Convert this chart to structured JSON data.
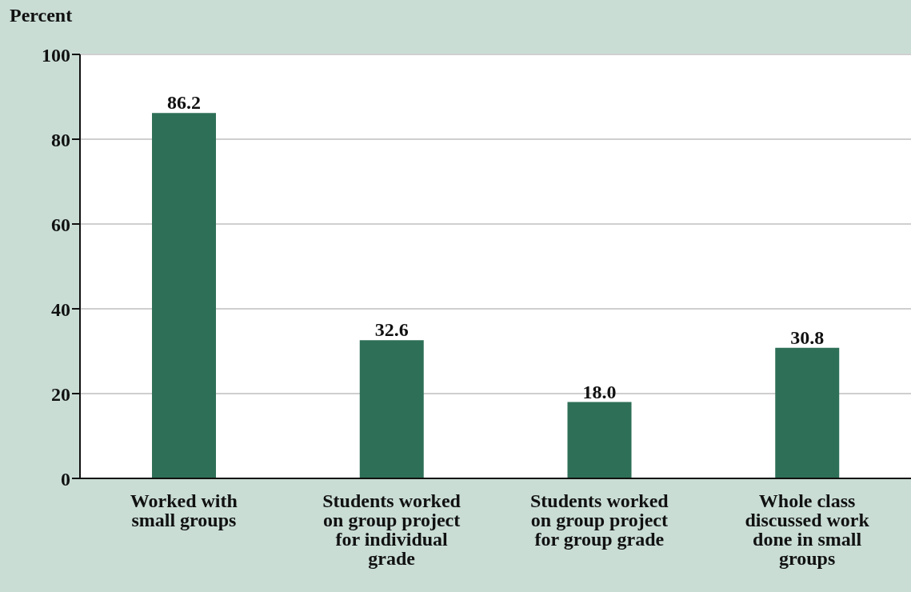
{
  "chart_data": {
    "type": "bar",
    "ylabel": "Percent",
    "categories": [
      "Worked with small groups",
      "Students worked on group project for individual grade",
      "Students worked on group project for group grade",
      "Whole class discussed work done in small groups"
    ],
    "values": [
      86.2,
      32.6,
      18.0,
      30.8
    ],
    "color": "#2e7057",
    "ylim": [
      0,
      100
    ],
    "yticks": [
      0,
      20,
      40,
      60,
      80,
      100
    ],
    "value_labels": [
      "86.2",
      "32.6",
      "18.0",
      "30.8"
    ],
    "grid": "y"
  }
}
